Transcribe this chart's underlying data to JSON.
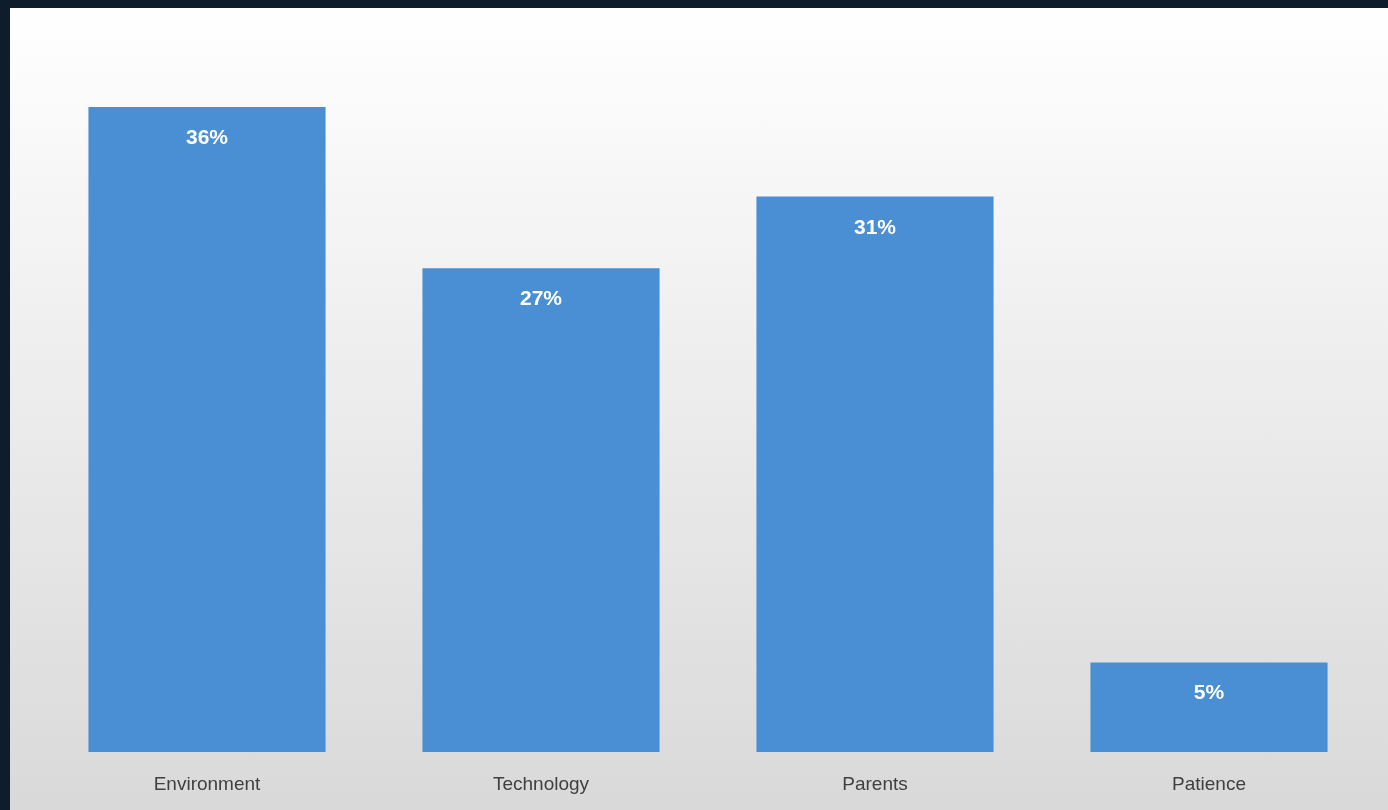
{
  "chart_data": {
    "type": "bar",
    "categories": [
      "Environment",
      "Technology",
      "Parents",
      "Patience"
    ],
    "values": [
      36,
      27,
      31,
      5
    ],
    "value_labels": [
      "36%",
      "27%",
      "31%",
      "5%"
    ],
    "color": "#4a8fd4"
  }
}
